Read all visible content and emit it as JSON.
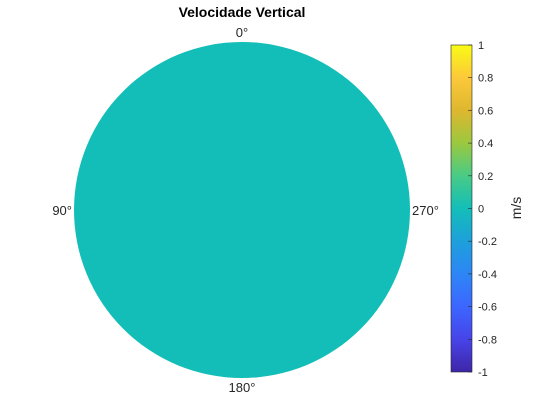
{
  "chart_data": {
    "type": "heatmap",
    "title": "Velocidade Vertical",
    "plot_shape": "polar disk",
    "angle_labels": [
      "0°",
      "90°",
      "180°",
      "270°"
    ],
    "field": {
      "value_everywhere": 0,
      "fill_color": "#13BEB8"
    },
    "colorbar": {
      "label": "m/s",
      "clim": [
        -1,
        1
      ],
      "ticks": [
        -1,
        -0.8,
        -0.6,
        -0.4,
        -0.2,
        0,
        0.2,
        0.4,
        0.6,
        0.8,
        1
      ],
      "tick_labels": [
        "-1",
        "-0.8",
        "-0.6",
        "-0.4",
        "-0.2",
        "0",
        "0.2",
        "0.4",
        "0.6",
        "0.8",
        "1"
      ],
      "colormap": [
        "#3E26A8",
        "#4744E8",
        "#3C66FF",
        "#2D86F6",
        "#1DA0DB",
        "#13BEB8",
        "#48CB86",
        "#9BC83F",
        "#DEB72F",
        "#FCC93A",
        "#F9FB15"
      ]
    }
  }
}
